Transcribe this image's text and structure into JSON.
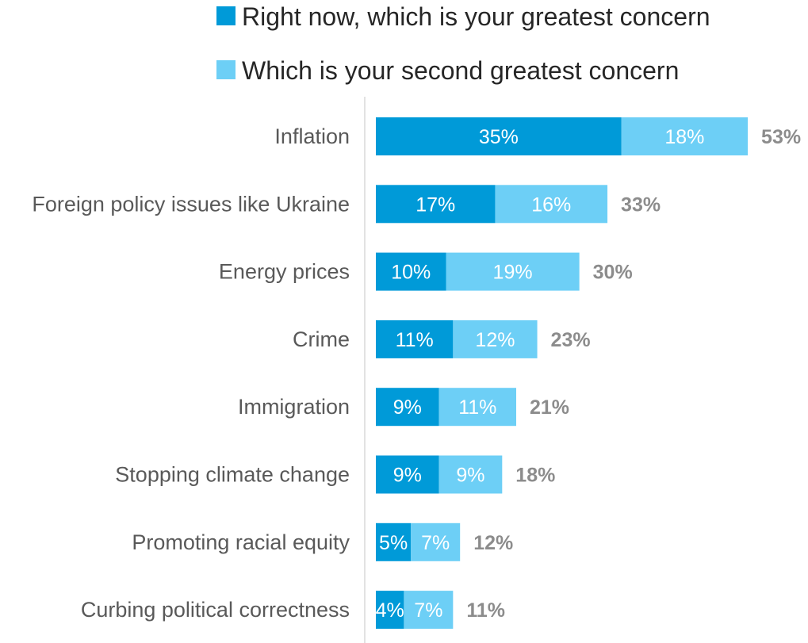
{
  "chart_data": {
    "type": "bar",
    "orientation": "horizontal",
    "stacked": true,
    "categories": [
      "Inflation",
      "Foreign policy issues like Ukraine",
      "Energy prices",
      "Crime",
      "Immigration",
      "Stopping climate change",
      "Promoting racial equity",
      "Curbing political correctness"
    ],
    "series": [
      {
        "name": "Right now, which is your greatest concern",
        "color": "#009ad8",
        "values": [
          35,
          17,
          10,
          11,
          9,
          9,
          5,
          4
        ],
        "labels": [
          "35%",
          "17%",
          "10%",
          "11%",
          "9%",
          "9%",
          "5%",
          "4%"
        ]
      },
      {
        "name": "Which is your second greatest concern",
        "color": "#6dcff6",
        "values": [
          18,
          16,
          19,
          12,
          11,
          9,
          7,
          7
        ],
        "labels": [
          "18%",
          "16%",
          "19%",
          "12%",
          "11%",
          "9%",
          "7%",
          "7%"
        ]
      }
    ],
    "totals": [
      53,
      33,
      30,
      23,
      21,
      18,
      12,
      11
    ],
    "total_labels": [
      "53%",
      "33%",
      "30%",
      "23%",
      "21%",
      "18%",
      "12%",
      "11%"
    ],
    "xlim": [
      0,
      53
    ],
    "legend_position": "top",
    "grid": false,
    "title": "",
    "xlabel": "",
    "ylabel": ""
  }
}
